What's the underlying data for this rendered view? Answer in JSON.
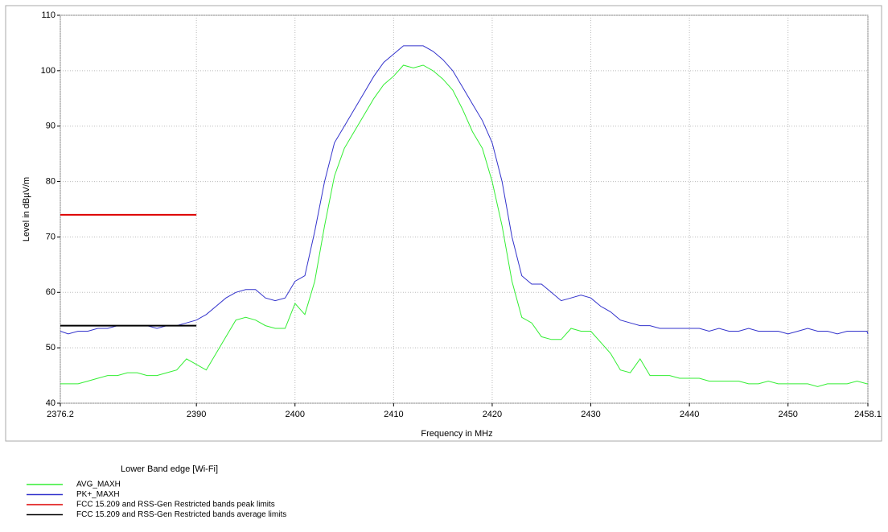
{
  "chart_data": {
    "type": "line",
    "xlabel": "Frequency in MHz",
    "ylabel": "Level in dBµV/m",
    "legend_title": "Lower Band edge [Wi-Fi]",
    "xlim": [
      2376.2,
      2458.1
    ],
    "xticks": [
      2376.2,
      2390,
      2400,
      2410,
      2420,
      2430,
      2440,
      2450,
      2458.1
    ],
    "ylim": [
      40,
      110
    ],
    "yticks": [
      40,
      50,
      60,
      70,
      80,
      90,
      100,
      110
    ],
    "grid": true,
    "x": [
      2376.2,
      2377,
      2378,
      2379,
      2380,
      2381,
      2382,
      2383,
      2384,
      2385,
      2386,
      2387,
      2388,
      2389,
      2390,
      2391,
      2392,
      2393,
      2394,
      2395,
      2396,
      2397,
      2398,
      2399,
      2400,
      2401,
      2402,
      2403,
      2404,
      2405,
      2406,
      2407,
      2408,
      2409,
      2410,
      2411,
      2412,
      2413,
      2414,
      2415,
      2416,
      2417,
      2418,
      2419,
      2420,
      2421,
      2422,
      2423,
      2424,
      2425,
      2426,
      2427,
      2428,
      2429,
      2430,
      2431,
      2432,
      2433,
      2434,
      2435,
      2436,
      2437,
      2438,
      2439,
      2440,
      2441,
      2442,
      2443,
      2444,
      2445,
      2446,
      2447,
      2448,
      2449,
      2450,
      2451,
      2452,
      2453,
      2454,
      2455,
      2456,
      2457,
      2458,
      2458.1
    ],
    "series": [
      {
        "name": "AVG_MAXH",
        "color": "#33ee33",
        "values": [
          43.5,
          43.5,
          43.5,
          44,
          44.5,
          45,
          45,
          45.5,
          45.5,
          45,
          45,
          45.5,
          46,
          48,
          47,
          46,
          49,
          52,
          55,
          55.5,
          55,
          54,
          53.5,
          53.5,
          58,
          56,
          62,
          72,
          81,
          86,
          89,
          92,
          95,
          97.5,
          99,
          101,
          100.5,
          101,
          100,
          98.5,
          96.5,
          93,
          89,
          86,
          80,
          72,
          62,
          55.5,
          54.5,
          52,
          51.5,
          51.5,
          53.5,
          53,
          53,
          51,
          49,
          46,
          45.5,
          48,
          45,
          45,
          45,
          44.5,
          44.5,
          44.5,
          44,
          44,
          44,
          44,
          43.5,
          43.5,
          44,
          43.5,
          43.5,
          43.5,
          43.5,
          43,
          43.5,
          43.5,
          43.5,
          44,
          43.5,
          43.5
        ]
      },
      {
        "name": "PK+_MAXH",
        "color": "#3333cc",
        "values": [
          53,
          52.5,
          53,
          53,
          53.5,
          53.5,
          54,
          54,
          54,
          54,
          53.5,
          54,
          54,
          54.5,
          55,
          56,
          57.5,
          59,
          60,
          60.5,
          60.5,
          59,
          58.5,
          59,
          62,
          63,
          71,
          80,
          87,
          90,
          93,
          96,
          99,
          101.5,
          103,
          104.5,
          104.5,
          104.5,
          103.5,
          102,
          100,
          97,
          94,
          91,
          87,
          80,
          70,
          63,
          61.5,
          61.5,
          60,
          58.5,
          59,
          59.5,
          59,
          57.5,
          56.5,
          55,
          54.5,
          54,
          54,
          53.5,
          53.5,
          53.5,
          53.5,
          53.5,
          53,
          53.5,
          53,
          53,
          53.5,
          53,
          53,
          53,
          52.5,
          53,
          53.5,
          53,
          53,
          52.5,
          53,
          53,
          53,
          52.5
        ]
      },
      {
        "name": "FCC 15.209 and RSS-Gen Restricted bands peak limits",
        "color": "#dd0000",
        "x": [
          2376.2,
          2390
        ],
        "values": [
          74,
          74
        ]
      },
      {
        "name": "FCC 15.209 and RSS-Gen Restricted bands average limits",
        "color": "#000000",
        "x": [
          2376.2,
          2390
        ],
        "values": [
          54,
          54
        ]
      }
    ]
  }
}
